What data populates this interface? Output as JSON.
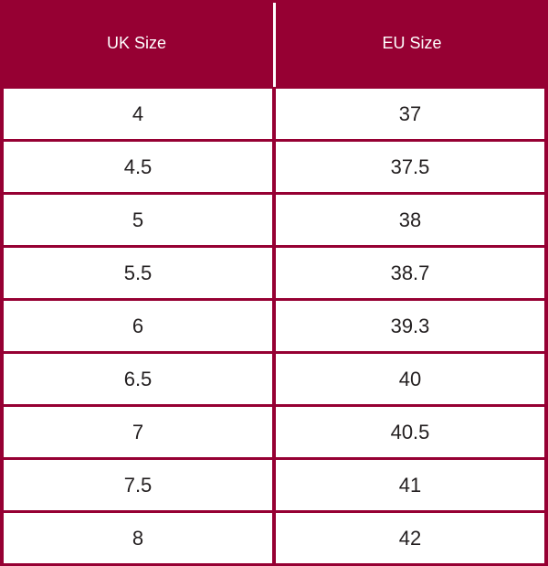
{
  "header": {
    "uk_label": "UK Size",
    "eu_label": "EU Size"
  },
  "rows": [
    {
      "uk": "4",
      "eu": "37"
    },
    {
      "uk": "4.5",
      "eu": "37.5"
    },
    {
      "uk": "5",
      "eu": "38"
    },
    {
      "uk": "5.5",
      "eu": "38.7"
    },
    {
      "uk": "6",
      "eu": "39.3"
    },
    {
      "uk": "6.5",
      "eu": "40"
    },
    {
      "uk": "7",
      "eu": "40.5"
    },
    {
      "uk": "7.5",
      "eu": "41"
    },
    {
      "uk": "8",
      "eu": "42"
    }
  ],
  "colors": {
    "accent": "#960033",
    "cell_background": "#ffffff",
    "cell_text": "#231f20",
    "header_text": "#ffffff"
  }
}
